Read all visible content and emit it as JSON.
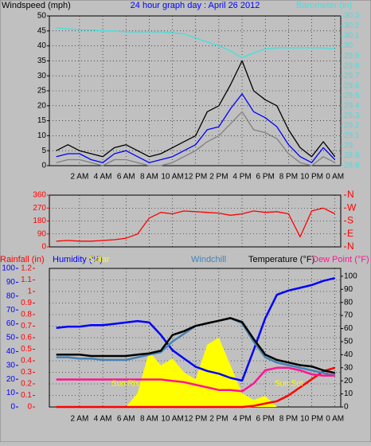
{
  "chart_data": [
    {
      "type": "line",
      "title": "24 hour graph day : April 26 2012",
      "x": [
        0,
        1,
        2,
        3,
        4,
        5,
        6,
        7,
        8,
        9,
        10,
        11,
        12,
        13,
        14,
        15,
        16,
        17,
        18,
        19,
        20,
        21,
        22,
        23,
        24
      ],
      "xlim": [
        -0.6,
        24.5
      ],
      "xticks": [
        {
          "value": 2,
          "label": "2 AM"
        },
        {
          "value": 4,
          "label": "4 AM"
        },
        {
          "value": 6,
          "label": "6 AM"
        },
        {
          "value": 8,
          "label": "8 AM"
        },
        {
          "value": 10,
          "label": "10 AM"
        },
        {
          "value": 12,
          "label": "12 PM"
        },
        {
          "value": 14,
          "label": "2 PM"
        },
        {
          "value": 16,
          "label": "4 PM"
        },
        {
          "value": 18,
          "label": "6 PM"
        },
        {
          "value": 20,
          "label": "8 PM"
        },
        {
          "value": 22,
          "label": "10 PM"
        },
        {
          "value": 24,
          "label": "0 AM"
        }
      ],
      "ylim": [
        0,
        50
      ],
      "yticks": [
        0,
        5,
        10,
        15,
        20,
        25,
        30,
        35,
        40,
        45,
        50
      ],
      "ycolor": "#000000",
      "y2lim": [
        28.8,
        30.3
      ],
      "y2ticks": [
        28.8,
        28.9,
        29,
        29.1,
        29.2,
        29.3,
        29.4,
        29.5,
        29.6,
        29.7,
        29.8,
        29.9,
        30,
        30.1,
        30.2,
        30.3
      ],
      "y2color": "#40e0e0",
      "grid": true,
      "series": [
        {
          "name": "Windspeed (mph)",
          "color": "#000000",
          "values": [
            5,
            7,
            5,
            4,
            3,
            6,
            7,
            5,
            3,
            4,
            6,
            8,
            10,
            18,
            20,
            27,
            35,
            25,
            22,
            20,
            12,
            6,
            3,
            8,
            3
          ]
        },
        {
          "color": "#0000ff",
          "values": [
            3,
            4,
            4,
            2,
            1,
            4,
            5,
            3,
            1,
            2,
            3,
            5,
            7,
            12,
            13,
            19,
            24,
            18,
            16,
            13,
            7,
            3,
            1,
            6,
            2
          ]
        },
        {
          "color": "#808080",
          "values": [
            1,
            2,
            2,
            1,
            0,
            2,
            2,
            1,
            0,
            0,
            1,
            3,
            5,
            8,
            10,
            14,
            18,
            12,
            11,
            9,
            4,
            1,
            0,
            3,
            1
          ]
        },
        {
          "name": "Barometer (in)",
          "color": "#40e0e0",
          "axis": "y2",
          "values": [
            30.18,
            30.17,
            30.16,
            30.16,
            30.15,
            30.15,
            30.14,
            30.14,
            30.14,
            30.14,
            30.13,
            30.12,
            30.08,
            30.04,
            30.0,
            29.95,
            29.88,
            29.93,
            29.97,
            29.98,
            29.98,
            29.98,
            29.98,
            29.98,
            29.97
          ]
        }
      ]
    },
    {
      "type": "line",
      "x": [
        0,
        1,
        2,
        3,
        4,
        5,
        6,
        7,
        8,
        9,
        10,
        11,
        12,
        13,
        14,
        15,
        16,
        17,
        18,
        19,
        20,
        21,
        22,
        23,
        24
      ],
      "xlim": [
        -0.6,
        24.5
      ],
      "ylim": [
        0,
        360
      ],
      "yticks": [
        0,
        90,
        180,
        270,
        360
      ],
      "ycolor": "#ff0000",
      "y2lim": [
        0,
        360
      ],
      "y2ticks": [
        {
          "value": 0,
          "label": "N"
        },
        {
          "value": 90,
          "label": "E"
        },
        {
          "value": 180,
          "label": "S"
        },
        {
          "value": 270,
          "label": "W"
        },
        {
          "value": 360,
          "label": "N"
        }
      ],
      "y2color": "#ff0000",
      "grid": true,
      "series": [
        {
          "color": "#ff0000",
          "values": [
            40,
            45,
            40,
            40,
            45,
            50,
            60,
            90,
            200,
            240,
            230,
            250,
            245,
            240,
            235,
            220,
            230,
            250,
            240,
            245,
            230,
            70,
            250,
            270,
            230
          ]
        }
      ]
    },
    {
      "type": "line",
      "x": [
        0,
        1,
        2,
        3,
        4,
        5,
        6,
        7,
        8,
        9,
        10,
        11,
        12,
        13,
        14,
        15,
        16,
        17,
        18,
        19,
        20,
        21,
        22,
        23,
        24
      ],
      "xlim": [
        -0.6,
        24.5
      ],
      "xticks": [
        {
          "value": 2,
          "label": "2 AM"
        },
        {
          "value": 4,
          "label": "4 AM"
        },
        {
          "value": 6,
          "label": "6 AM"
        },
        {
          "value": 8,
          "label": "8 AM"
        },
        {
          "value": 10,
          "label": "10 AM"
        },
        {
          "value": 12,
          "label": "12 PM"
        },
        {
          "value": 14,
          "label": "2 PM"
        },
        {
          "value": 16,
          "label": "4 PM"
        },
        {
          "value": 18,
          "label": "6 PM"
        },
        {
          "value": 20,
          "label": "8 PM"
        },
        {
          "value": 22,
          "label": "10 PM"
        },
        {
          "value": 24,
          "label": "0 AM"
        }
      ],
      "ylim": [
        0,
        1.2
      ],
      "yticks": [
        0,
        0.1,
        0.2,
        0.3,
        0.4,
        0.5,
        0.6,
        0.7,
        0.8,
        0.9,
        1,
        1.1,
        1.2
      ],
      "ycolor": "#ff0000",
      "y2lim": [
        0,
        106
      ],
      "y2ticks": [
        0,
        10,
        20,
        30,
        40,
        50,
        60,
        70,
        80,
        90,
        100
      ],
      "y2color": "#000000",
      "y3lim": [
        0,
        100
      ],
      "y3ticks": [
        0,
        10,
        20,
        30,
        40,
        50,
        60,
        70,
        80,
        90,
        100
      ],
      "y3color": "#0000ff",
      "grid": true,
      "annotations": [
        "Sun Rise",
        "Sun Set"
      ],
      "series": [
        {
          "name": "Rainfall (in)",
          "color": "#ff0000",
          "values": [
            0,
            0,
            0,
            0,
            0,
            0,
            0,
            0,
            0,
            0,
            0,
            0,
            0,
            0,
            0,
            0,
            0,
            0.01,
            0.03,
            0.05,
            0.1,
            0.17,
            0.24,
            0.31,
            0.34
          ]
        },
        {
          "name": "Humidity (%)",
          "color": "#0000ff",
          "axis": "y3",
          "values": [
            57,
            58,
            58,
            59,
            59,
            60,
            61,
            62,
            61,
            52,
            41,
            35,
            29,
            26,
            24,
            21,
            19,
            41,
            64,
            81,
            84,
            86,
            88,
            91,
            93
          ]
        },
        {
          "name": "Solar",
          "color": "#ffff00",
          "axis": "y3",
          "kind": "area",
          "values": [
            0,
            0,
            0,
            0,
            0,
            0,
            0,
            10,
            40,
            30,
            35,
            25,
            20,
            45,
            50,
            30,
            10,
            5,
            8,
            0,
            0,
            0,
            0,
            0,
            0
          ]
        },
        {
          "name": "Windchill",
          "color": "#4682b4",
          "axis": "y2",
          "values": [
            38,
            38,
            37,
            37,
            36,
            36,
            36,
            38,
            40,
            42,
            50,
            56,
            62,
            64,
            66,
            68,
            64,
            50,
            38,
            34,
            32,
            30,
            28,
            26,
            24
          ]
        },
        {
          "name": "Temperature (°F)",
          "color": "#000000",
          "axis": "y2",
          "values": [
            40,
            40,
            40,
            39,
            39,
            39,
            39,
            40,
            41,
            43,
            55,
            58,
            62,
            64,
            66,
            68,
            65,
            52,
            40,
            36,
            34,
            32,
            31,
            28,
            26
          ]
        },
        {
          "name": "Dew Point (°F)",
          "color": "#ff1493",
          "axis": "y2",
          "values": [
            21,
            21,
            21,
            21,
            21,
            21,
            21,
            21,
            21,
            21,
            20,
            19,
            17,
            15,
            13,
            13,
            12,
            18,
            28,
            30,
            30,
            28,
            25,
            24,
            24
          ]
        }
      ]
    }
  ]
}
